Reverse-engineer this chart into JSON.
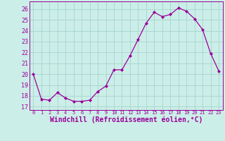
{
  "x": [
    0,
    1,
    2,
    3,
    4,
    5,
    6,
    7,
    8,
    9,
    10,
    11,
    12,
    13,
    14,
    15,
    16,
    17,
    18,
    19,
    20,
    21,
    22,
    23
  ],
  "y": [
    20.0,
    17.7,
    17.6,
    18.3,
    17.8,
    17.5,
    17.5,
    17.6,
    18.4,
    18.9,
    20.4,
    20.4,
    21.7,
    23.2,
    24.7,
    25.7,
    25.3,
    25.5,
    26.1,
    25.8,
    25.1,
    24.1,
    21.9,
    20.3
  ],
  "line_color": "#990099",
  "marker": "D",
  "marker_size": 2,
  "bg_color": "#cceee8",
  "grid_color": "#aad8d2",
  "xlabel": "Windchill (Refroidissement éolien,°C)",
  "xlabel_fontsize": 7,
  "yticks": [
    17,
    18,
    19,
    20,
    21,
    22,
    23,
    24,
    25,
    26
  ],
  "ylim": [
    16.7,
    26.7
  ],
  "xlim": [
    -0.5,
    23.5
  ]
}
